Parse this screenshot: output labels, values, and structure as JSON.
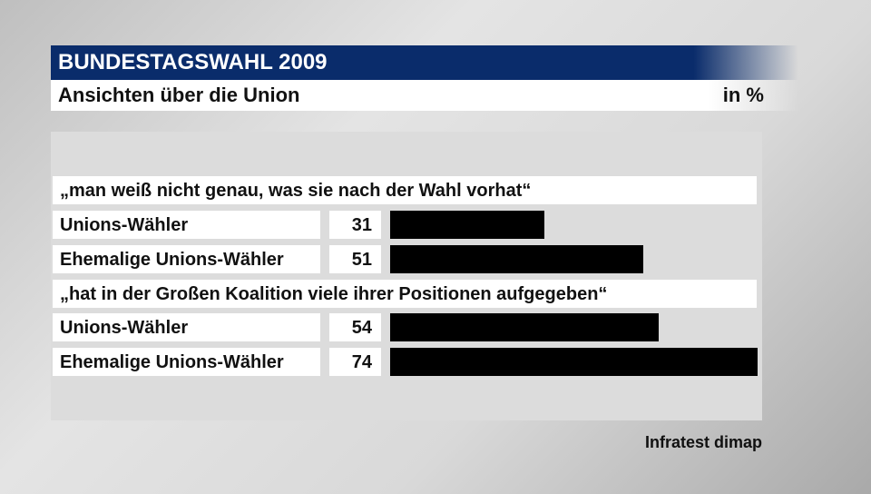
{
  "header": {
    "title": "BUNDESTAGSWAHL 2009",
    "subtitle": "Ansichten über die Union",
    "unit": "in %"
  },
  "source": "Infratest dimap",
  "colors": {
    "header_bg": "#0a2c6b",
    "bar": "#000000"
  },
  "chart_data": {
    "type": "bar",
    "orientation": "horizontal",
    "xlim": [
      0,
      74
    ],
    "groups": [
      {
        "question": "„man weiß nicht genau, was sie nach der Wahl vorhat“",
        "rows": [
          {
            "label": "Unions-Wähler",
            "value": 31
          },
          {
            "label": "Ehemalige Unions-Wähler",
            "value": 51
          }
        ]
      },
      {
        "question": "„hat in der Großen Koalition viele ihrer Positionen aufgegeben“",
        "rows": [
          {
            "label": "Unions-Wähler",
            "value": 54
          },
          {
            "label": "Ehemalige Unions-Wähler",
            "value": 74
          }
        ]
      }
    ]
  }
}
